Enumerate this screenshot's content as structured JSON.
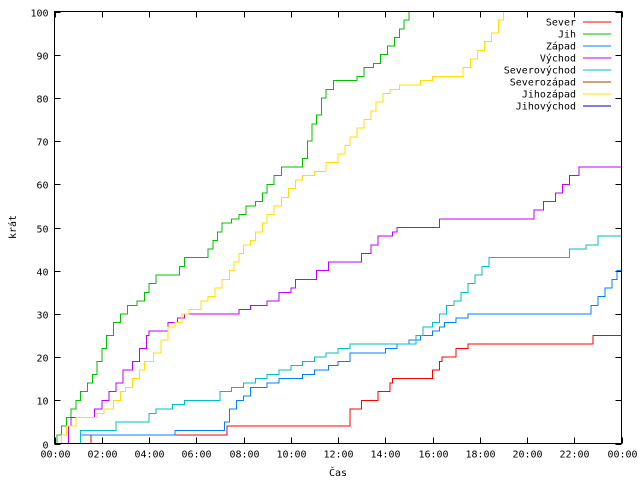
{
  "chart_data": {
    "type": "line",
    "title": "",
    "xlabel": "Čas",
    "ylabel": "krát",
    "xlim": [
      0,
      24
    ],
    "ylim": [
      0,
      100
    ],
    "x_unit": "hours",
    "x_ticks": [
      0,
      2,
      4,
      6,
      8,
      10,
      12,
      14,
      16,
      18,
      20,
      22,
      24
    ],
    "x_tick_labels": [
      "00:00",
      "02:00",
      "04:00",
      "06:00",
      "08:00",
      "10:00",
      "12:00",
      "14:00",
      "16:00",
      "18:00",
      "20:00",
      "22:00",
      "00:00"
    ],
    "y_ticks": [
      0,
      10,
      20,
      30,
      40,
      50,
      60,
      70,
      80,
      90,
      100
    ],
    "y_tick_labels": [
      "0",
      "10",
      "20",
      "30",
      "40",
      "50",
      "60",
      "70",
      "80",
      "90",
      "100"
    ],
    "grid": false,
    "legend_position": "top-right",
    "series": [
      {
        "name": "Sever",
        "color": "#ff0000",
        "points": [
          [
            0,
            0
          ],
          [
            1.5,
            0
          ],
          [
            1.55,
            2
          ],
          [
            7.2,
            2
          ],
          [
            7.3,
            4
          ],
          [
            12.4,
            4
          ],
          [
            12.5,
            8
          ],
          [
            13.0,
            10
          ],
          [
            13.7,
            12
          ],
          [
            14.2,
            14
          ],
          [
            14.3,
            15
          ],
          [
            15.7,
            15
          ],
          [
            16.0,
            17
          ],
          [
            16.3,
            19
          ],
          [
            16.4,
            20
          ],
          [
            17.0,
            22
          ],
          [
            17.5,
            23
          ],
          [
            22.7,
            23
          ],
          [
            22.8,
            25
          ],
          [
            24,
            25
          ]
        ]
      },
      {
        "name": "Jih",
        "color": "#00c000",
        "points": [
          [
            0,
            0
          ],
          [
            0.1,
            2
          ],
          [
            0.3,
            4
          ],
          [
            0.5,
            6
          ],
          [
            0.7,
            8
          ],
          [
            0.9,
            10
          ],
          [
            1.1,
            12
          ],
          [
            1.4,
            14
          ],
          [
            1.6,
            16
          ],
          [
            1.8,
            19
          ],
          [
            2.0,
            22
          ],
          [
            2.2,
            25
          ],
          [
            2.5,
            28
          ],
          [
            2.8,
            30
          ],
          [
            3.1,
            32
          ],
          [
            3.5,
            33
          ],
          [
            3.8,
            35
          ],
          [
            4.0,
            37
          ],
          [
            4.3,
            39
          ],
          [
            5.0,
            39
          ],
          [
            5.3,
            41
          ],
          [
            5.5,
            43
          ],
          [
            6.2,
            43
          ],
          [
            6.5,
            45
          ],
          [
            6.7,
            47
          ],
          [
            6.9,
            49
          ],
          [
            7.1,
            51
          ],
          [
            7.5,
            52
          ],
          [
            7.8,
            53
          ],
          [
            8.1,
            55
          ],
          [
            8.5,
            56
          ],
          [
            8.8,
            58
          ],
          [
            9.0,
            60
          ],
          [
            9.3,
            62
          ],
          [
            9.6,
            64
          ],
          [
            10.2,
            64
          ],
          [
            10.5,
            66
          ],
          [
            10.7,
            70
          ],
          [
            10.9,
            74
          ],
          [
            11.1,
            76
          ],
          [
            11.3,
            80
          ],
          [
            11.5,
            82
          ],
          [
            11.8,
            84
          ],
          [
            12.5,
            84
          ],
          [
            12.8,
            85
          ],
          [
            13.1,
            87
          ],
          [
            13.5,
            88
          ],
          [
            13.8,
            90
          ],
          [
            14.1,
            92
          ],
          [
            14.4,
            94
          ],
          [
            14.6,
            96
          ],
          [
            14.8,
            98
          ],
          [
            15.0,
            100
          ]
        ]
      },
      {
        "name": "Západ",
        "color": "#0080ff",
        "points": [
          [
            0,
            0
          ],
          [
            1.0,
            0
          ],
          [
            1.1,
            2
          ],
          [
            5.0,
            2
          ],
          [
            5.1,
            3
          ],
          [
            7.0,
            3
          ],
          [
            7.2,
            5
          ],
          [
            7.4,
            8
          ],
          [
            7.7,
            10
          ],
          [
            8.0,
            11
          ],
          [
            8.3,
            13
          ],
          [
            9.0,
            14
          ],
          [
            9.5,
            15
          ],
          [
            10.5,
            16
          ],
          [
            11.0,
            17
          ],
          [
            11.6,
            18
          ],
          [
            12.0,
            19
          ],
          [
            12.5,
            21
          ],
          [
            14.0,
            22
          ],
          [
            14.5,
            23
          ],
          [
            15.0,
            24
          ],
          [
            15.5,
            25
          ],
          [
            16.0,
            26
          ],
          [
            16.3,
            27
          ],
          [
            16.5,
            28
          ],
          [
            17.0,
            29
          ],
          [
            17.5,
            30
          ],
          [
            22.5,
            30
          ],
          [
            22.7,
            32
          ],
          [
            23.0,
            34
          ],
          [
            23.3,
            36
          ],
          [
            23.6,
            38
          ],
          [
            23.8,
            40
          ],
          [
            24,
            40
          ]
        ]
      },
      {
        "name": "Východ",
        "color": "#c000ff",
        "points": [
          [
            0,
            0
          ],
          [
            0.5,
            0
          ],
          [
            0.6,
            4
          ],
          [
            0.7,
            6
          ],
          [
            1.5,
            6
          ],
          [
            1.7,
            8
          ],
          [
            2.0,
            10
          ],
          [
            2.3,
            12
          ],
          [
            2.6,
            14
          ],
          [
            2.9,
            17
          ],
          [
            3.3,
            19
          ],
          [
            3.6,
            22
          ],
          [
            3.9,
            25
          ],
          [
            4.0,
            26
          ],
          [
            4.5,
            26
          ],
          [
            4.8,
            28
          ],
          [
            5.2,
            29
          ],
          [
            5.5,
            30
          ],
          [
            7.5,
            30
          ],
          [
            7.8,
            31
          ],
          [
            8.3,
            32
          ],
          [
            9.0,
            33
          ],
          [
            9.5,
            35
          ],
          [
            10.0,
            36
          ],
          [
            10.2,
            38
          ],
          [
            10.9,
            38
          ],
          [
            11.1,
            40
          ],
          [
            11.6,
            42
          ],
          [
            12.8,
            42
          ],
          [
            13.0,
            44
          ],
          [
            13.4,
            46
          ],
          [
            13.7,
            48
          ],
          [
            14.3,
            49
          ],
          [
            14.5,
            50
          ],
          [
            16.0,
            50
          ],
          [
            16.3,
            52
          ],
          [
            20.0,
            52
          ],
          [
            20.3,
            54
          ],
          [
            20.7,
            56
          ],
          [
            21.2,
            58
          ],
          [
            21.5,
            60
          ],
          [
            21.8,
            62
          ],
          [
            22.2,
            64
          ],
          [
            23.8,
            64
          ],
          [
            24,
            66
          ]
        ]
      },
      {
        "name": "Severovýchod",
        "color": "#00c0c0",
        "points": [
          [
            0,
            0
          ],
          [
            1.0,
            0
          ],
          [
            1.1,
            3
          ],
          [
            2.5,
            3
          ],
          [
            2.6,
            5
          ],
          [
            3.8,
            5
          ],
          [
            4.0,
            7
          ],
          [
            4.3,
            8
          ],
          [
            5.0,
            9
          ],
          [
            5.5,
            10
          ],
          [
            6.5,
            10
          ],
          [
            7.0,
            12
          ],
          [
            7.5,
            13
          ],
          [
            8.0,
            14
          ],
          [
            8.5,
            15
          ],
          [
            9.0,
            16
          ],
          [
            9.5,
            17
          ],
          [
            10.0,
            18
          ],
          [
            10.5,
            19
          ],
          [
            11.0,
            20
          ],
          [
            11.5,
            21
          ],
          [
            12.0,
            22
          ],
          [
            12.5,
            23
          ],
          [
            15.0,
            23
          ],
          [
            15.3,
            25
          ],
          [
            15.6,
            27
          ],
          [
            16.0,
            28
          ],
          [
            16.3,
            30
          ],
          [
            16.6,
            32
          ],
          [
            16.9,
            33
          ],
          [
            17.2,
            35
          ],
          [
            17.5,
            37
          ],
          [
            17.8,
            39
          ],
          [
            18.1,
            41
          ],
          [
            18.4,
            43
          ],
          [
            21.5,
            43
          ],
          [
            21.8,
            45
          ],
          [
            22.5,
            46
          ],
          [
            23.0,
            48
          ],
          [
            24,
            48
          ]
        ]
      },
      {
        "name": "Severozápad",
        "color": "#a04000",
        "points": []
      },
      {
        "name": "Jihozápad",
        "color": "#ffe000",
        "points": [
          [
            0,
            0
          ],
          [
            0.3,
            2
          ],
          [
            0.5,
            4
          ],
          [
            0.9,
            6
          ],
          [
            1.6,
            6
          ],
          [
            1.8,
            7
          ],
          [
            2.1,
            8
          ],
          [
            2.5,
            10
          ],
          [
            2.8,
            12
          ],
          [
            3.0,
            13
          ],
          [
            3.3,
            15
          ],
          [
            3.6,
            17
          ],
          [
            3.8,
            19
          ],
          [
            4.2,
            21
          ],
          [
            4.5,
            24
          ],
          [
            4.8,
            27
          ],
          [
            5.1,
            28
          ],
          [
            5.4,
            30
          ],
          [
            5.7,
            31
          ],
          [
            6.2,
            33
          ],
          [
            6.5,
            34
          ],
          [
            6.8,
            36
          ],
          [
            7.1,
            38
          ],
          [
            7.4,
            40
          ],
          [
            7.6,
            42
          ],
          [
            7.8,
            44
          ],
          [
            8.0,
            46
          ],
          [
            8.3,
            47
          ],
          [
            8.5,
            49
          ],
          [
            8.8,
            51
          ],
          [
            9.0,
            53
          ],
          [
            9.3,
            55
          ],
          [
            9.6,
            57
          ],
          [
            9.9,
            59
          ],
          [
            10.2,
            61
          ],
          [
            10.5,
            62
          ],
          [
            11.0,
            63
          ],
          [
            11.5,
            65
          ],
          [
            12.0,
            67
          ],
          [
            12.3,
            69
          ],
          [
            12.5,
            71
          ],
          [
            12.8,
            73
          ],
          [
            13.1,
            75
          ],
          [
            13.4,
            77
          ],
          [
            13.6,
            79
          ],
          [
            13.9,
            81
          ],
          [
            14.2,
            82
          ],
          [
            14.6,
            83
          ],
          [
            15.5,
            84
          ],
          [
            16.0,
            85
          ],
          [
            17.0,
            85
          ],
          [
            17.3,
            87
          ],
          [
            17.6,
            89
          ],
          [
            17.9,
            91
          ],
          [
            18.2,
            93
          ],
          [
            18.5,
            95
          ],
          [
            18.8,
            98
          ],
          [
            19.0,
            100
          ]
        ]
      },
      {
        "name": "Jihovýchod",
        "color": "#0000c0",
        "points": []
      }
    ]
  }
}
